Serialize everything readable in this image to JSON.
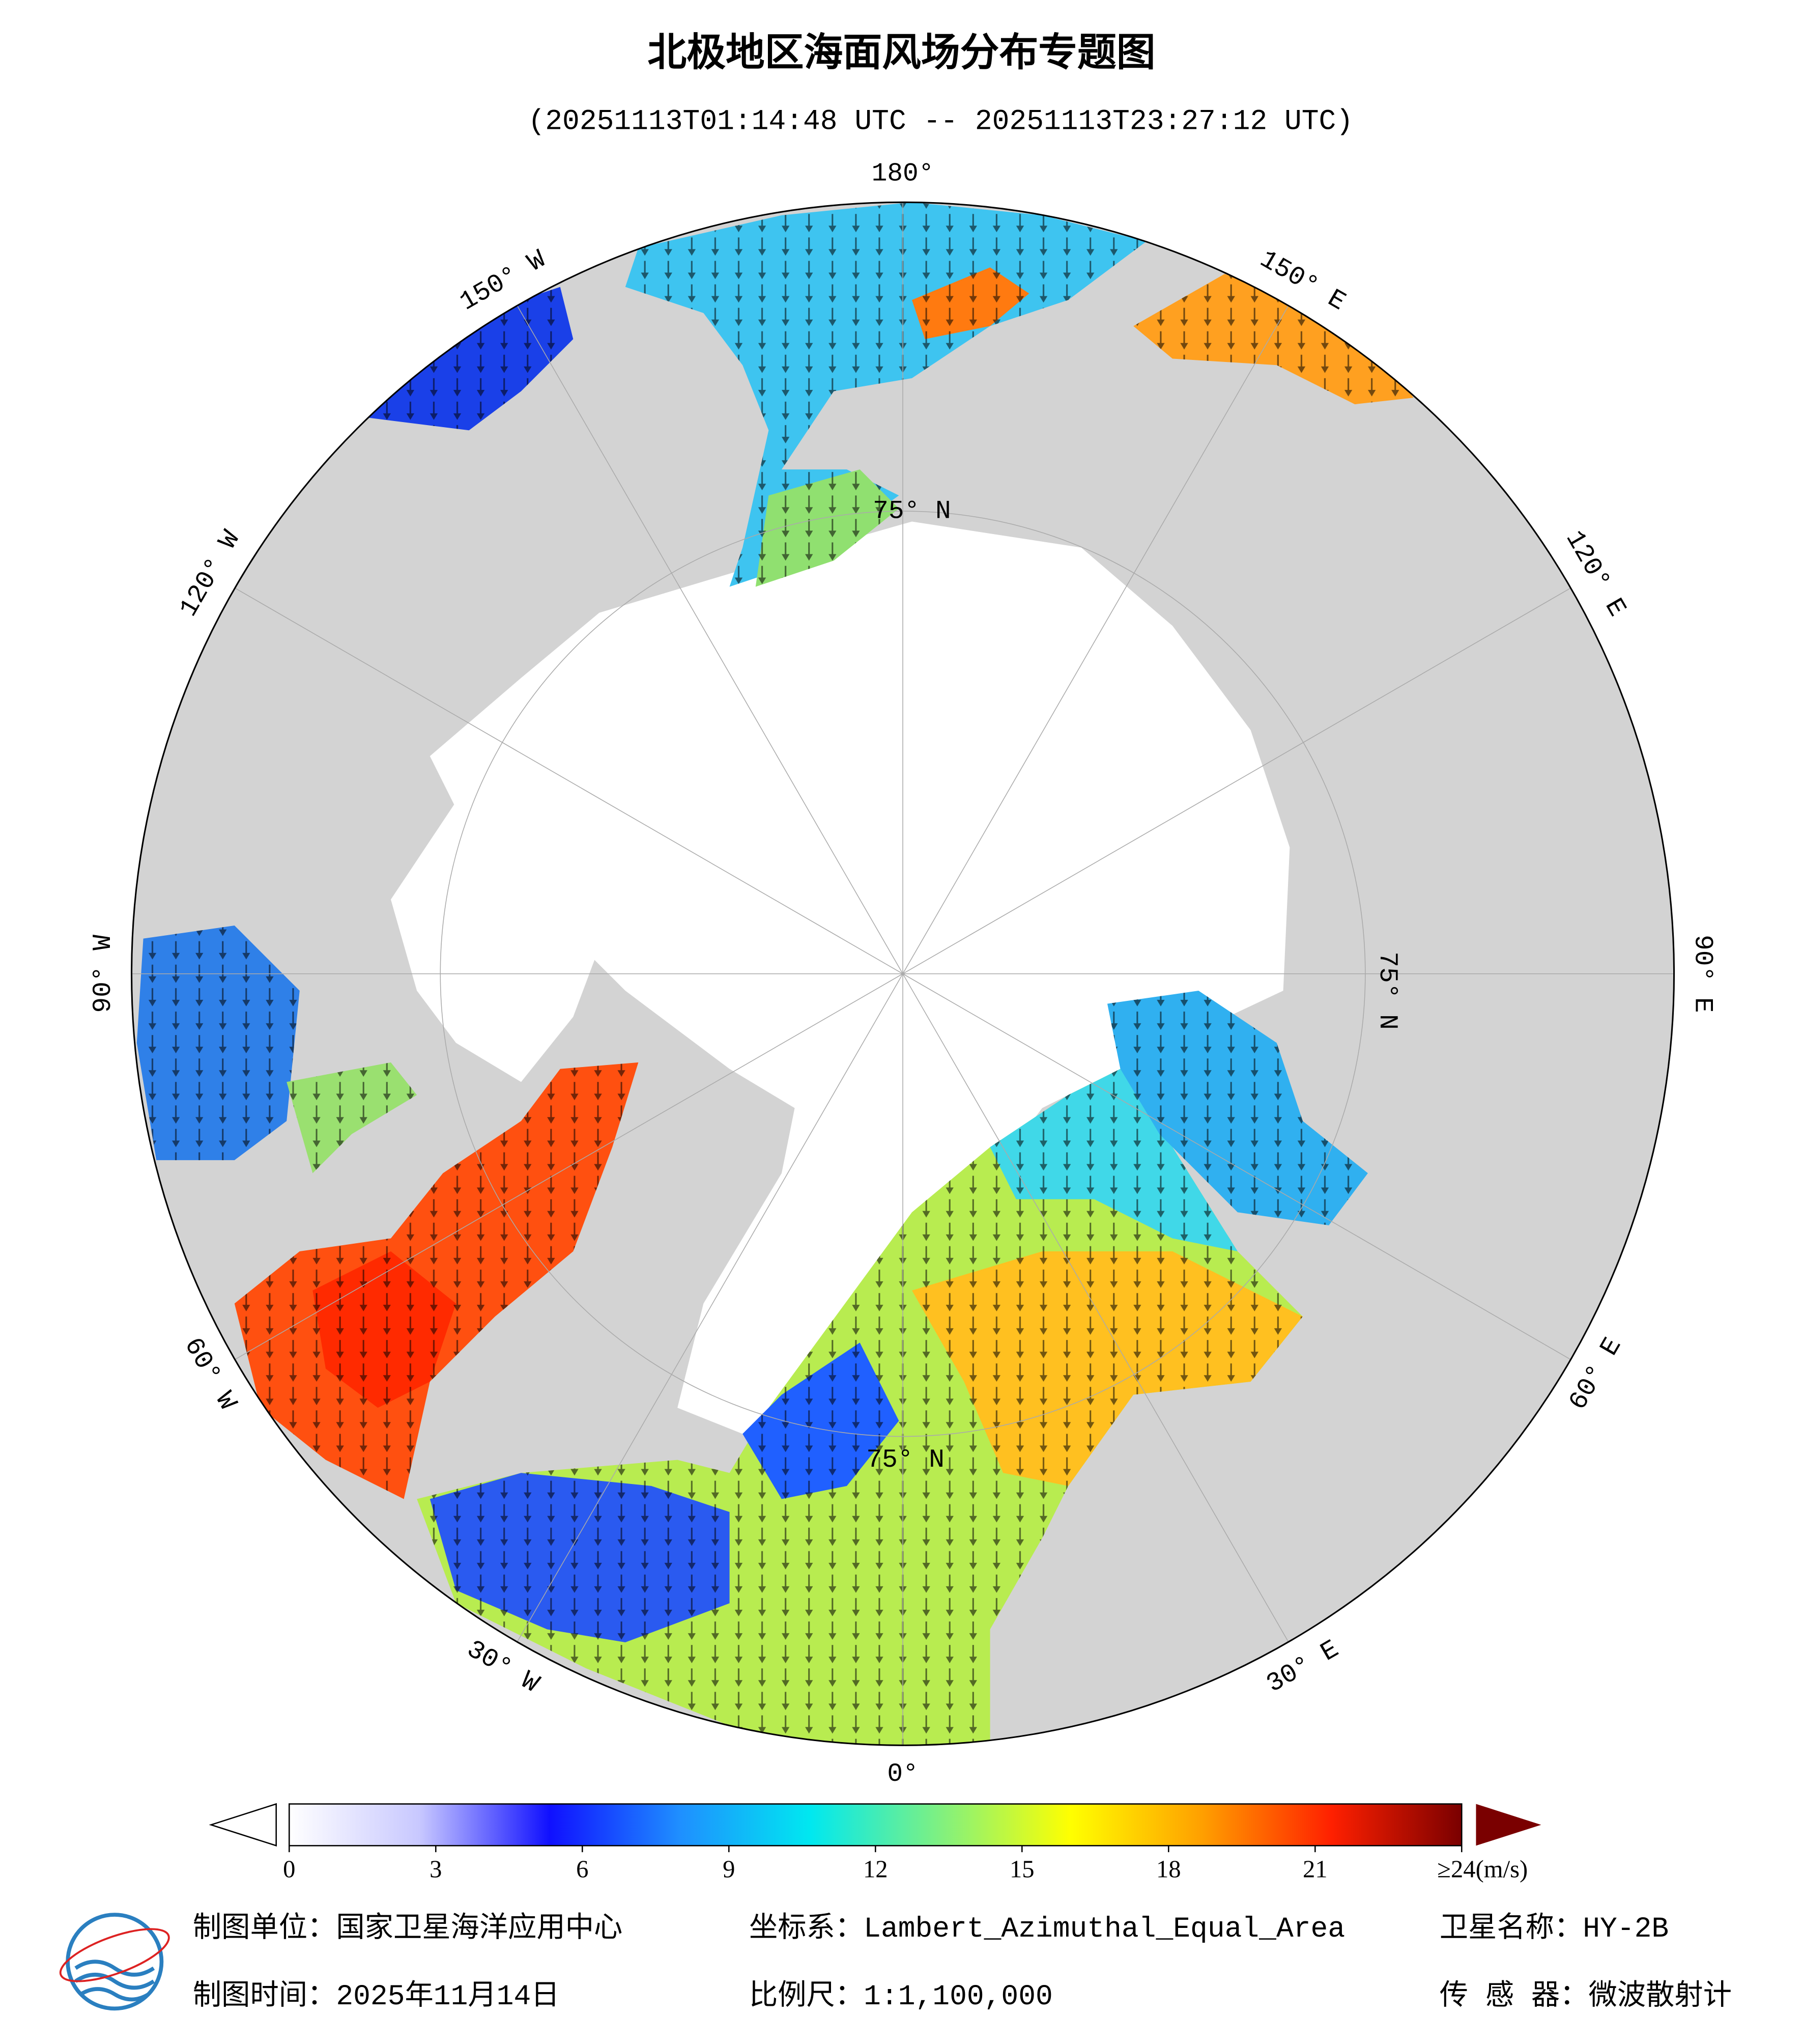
{
  "header": {
    "title": "北极地区海面风场分布专题图",
    "subtitle": "(20251113T01:14:48 UTC -- 20251113T23:27:12 UTC)"
  },
  "map": {
    "lon_labels": [
      "180°",
      "150° E",
      "120° E",
      "90° E",
      "60° E",
      "30° E",
      "0°",
      "30° W",
      "60° W",
      "90° W",
      "120° W",
      "150° W"
    ],
    "lat_labels": [
      "75° N",
      "75° N",
      "75° N"
    ]
  },
  "colorbar": {
    "lim": [
      0,
      24
    ],
    "ticks": [
      0,
      3,
      6,
      9,
      12,
      15,
      18,
      21,
      {
        "value": 24,
        "label": "≥24(m/s)"
      }
    ],
    "colors": [
      "#ffffff",
      "#c8c8ff",
      "#1010ff",
      "#1f8fff",
      "#00e8f0",
      "#80f080",
      "#ffff00",
      "#ffa000",
      "#ff2000",
      "#7a0000"
    ]
  },
  "footer": {
    "org": "制图单位：国家卫星海洋应用中心",
    "crs": "坐标系：Lambert_Azimuthal_Equal_Area",
    "satellite": "卫星名称：HY-2B",
    "date": "制图时间：2025年11月14日",
    "scale": "比例尺：1:1,100,000",
    "sensor": "传 感 器：微波散射计"
  }
}
